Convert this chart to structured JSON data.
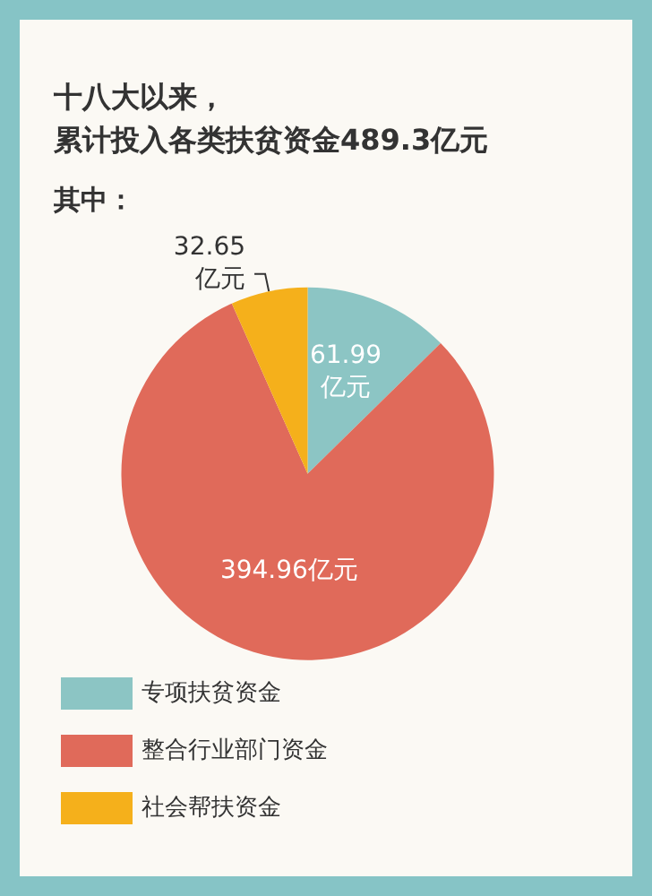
{
  "chart_data": {
    "type": "pie",
    "title": "十八大以来，累计投入各类扶贫资金489.3亿元",
    "subtitle": "其中：",
    "categories": [
      "专项扶贫资金",
      "整合行业部门资金",
      "社会帮扶资金"
    ],
    "values": [
      61.99,
      394.96,
      32.65
    ],
    "colors": [
      "#8cc5c4",
      "#e06a5a",
      "#f5b01b"
    ],
    "value_labels": [
      "61.99亿元",
      "394.96亿元",
      "32.65亿元"
    ],
    "legend": "bottom left"
  }
}
